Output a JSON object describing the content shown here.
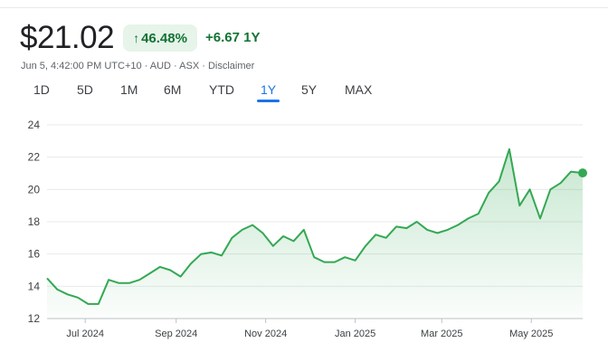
{
  "quote": {
    "price": "$21.02",
    "change_percent": "46.48%",
    "change_value": "+6.67",
    "change_period": "1Y",
    "meta": "Jun 5, 4:42:00 PM UTC+10 · AUD · ASX · Disclaimer"
  },
  "ranges": [
    "1D",
    "5D",
    "1M",
    "6M",
    "YTD",
    "1Y",
    "5Y",
    "MAX"
  ],
  "active_range": "1Y",
  "colors": {
    "line": "#34a853",
    "positive_text": "#137333",
    "positive_bg": "#e6f4ea",
    "accent": "#1a73e8"
  },
  "chart_data": {
    "type": "area",
    "title": "",
    "xlabel": "",
    "ylabel": "",
    "y_ticks": [
      "12",
      "14",
      "16",
      "18",
      "20",
      "22",
      "24"
    ],
    "ylim": [
      12,
      24
    ],
    "x_ticks": [
      "Jul 2024",
      "Sep 2024",
      "Nov 2024",
      "Jan 2025",
      "Mar 2025",
      "May 2025"
    ],
    "x_tick_dates": [
      "2024-07-01",
      "2024-09-01",
      "2024-11-01",
      "2025-01-01",
      "2025-03-01",
      "2025-05-01"
    ],
    "xlim": [
      "2024-06-05",
      "2025-06-05"
    ],
    "grid": true,
    "series": [
      {
        "x": [
          "2024-06-05",
          "2024-06-12",
          "2024-06-19",
          "2024-06-26",
          "2024-07-03",
          "2024-07-10",
          "2024-07-17",
          "2024-07-24",
          "2024-07-31",
          "2024-08-07",
          "2024-08-14",
          "2024-08-21",
          "2024-08-28",
          "2024-09-04",
          "2024-09-11",
          "2024-09-18",
          "2024-09-25",
          "2024-10-02",
          "2024-10-09",
          "2024-10-16",
          "2024-10-23",
          "2024-10-30",
          "2024-11-06",
          "2024-11-13",
          "2024-11-20",
          "2024-11-27",
          "2024-12-04",
          "2024-12-11",
          "2024-12-18",
          "2024-12-25",
          "2025-01-01",
          "2025-01-08",
          "2025-01-15",
          "2025-01-22",
          "2025-01-29",
          "2025-02-05",
          "2025-02-12",
          "2025-02-19",
          "2025-02-26",
          "2025-03-05",
          "2025-03-12",
          "2025-03-19",
          "2025-03-26",
          "2025-04-02",
          "2025-04-09",
          "2025-04-16",
          "2025-04-23",
          "2025-04-30",
          "2025-05-07",
          "2025-05-14",
          "2025-05-21",
          "2025-05-28",
          "2025-06-05"
        ],
        "values": [
          14.5,
          13.8,
          13.5,
          13.3,
          12.9,
          12.9,
          14.4,
          14.2,
          14.2,
          14.4,
          14.8,
          15.2,
          15.0,
          14.6,
          15.4,
          16.0,
          16.1,
          15.9,
          17.0,
          17.5,
          17.8,
          17.3,
          16.5,
          17.1,
          16.8,
          17.5,
          15.8,
          15.5,
          15.5,
          15.8,
          15.6,
          16.5,
          17.2,
          17.0,
          17.7,
          17.6,
          18.0,
          17.5,
          17.3,
          17.5,
          17.8,
          18.2,
          18.5,
          19.8,
          20.5,
          22.5,
          19.0,
          20.0,
          18.2,
          20.0,
          20.4,
          21.1,
          21.02
        ]
      }
    ]
  }
}
